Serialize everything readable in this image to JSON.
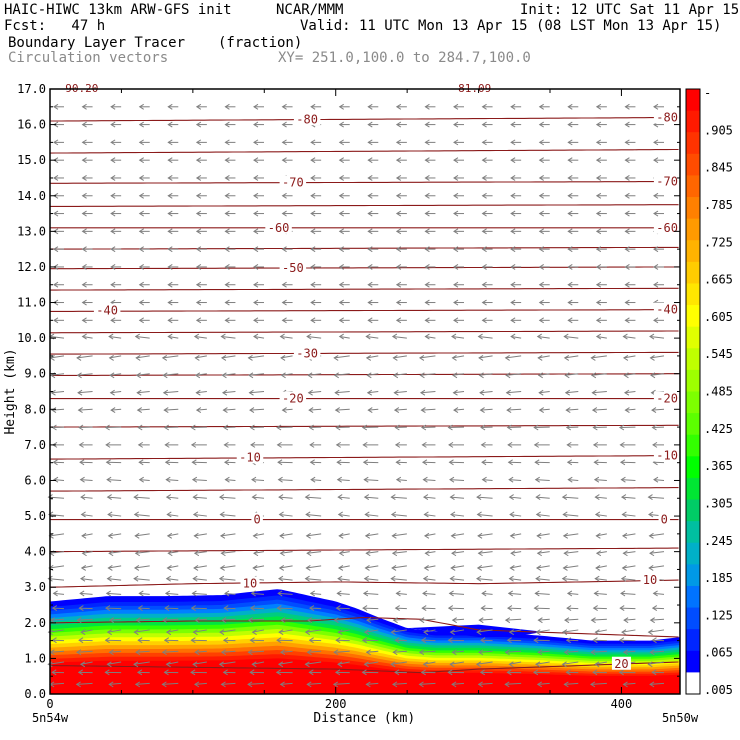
{
  "header": {
    "title_left": "HAIC-HIWC 13km ARW-GFS init",
    "title_org": "NCAR/MMM",
    "init": "Init: 12 UTC Sat 11 Apr 15",
    "fcst": "Fcst:   47 h",
    "valid": "Valid: 11 UTC Mon 13 Apr 15 (08 LST Mon 13 Apr 15)",
    "field": "Boundary Layer Tracer",
    "field_units": "(fraction)",
    "vectors": "Circulation vectors",
    "xy": "XY= 251.0,100.0 to 284.7,100.0"
  },
  "colors": {
    "contour": "#8b1a1a",
    "vector": "#7f7f7f"
  },
  "chart_data": {
    "type": "heatmap",
    "xlabel": "Distance (km)",
    "ylabel": "Height (km)",
    "xlim": [
      0,
      441
    ],
    "ylim": [
      0,
      17
    ],
    "x_ticks": [
      0,
      200,
      400
    ],
    "y_ticks": [
      0.0,
      1.0,
      2.0,
      3.0,
      4.0,
      5.0,
      6.0,
      7.0,
      8.0,
      9.0,
      10.0,
      11.0,
      12.0,
      13.0,
      14.0,
      15.0,
      16.0,
      17.0
    ],
    "x_end_labels": [
      "5n54w",
      "5n50w"
    ],
    "colorbar": {
      "labels": [
        "-",
        ".905",
        ".845",
        ".785",
        ".725",
        ".665",
        ".605",
        ".545",
        ".485",
        ".425",
        ".365",
        ".305",
        ".245",
        ".185",
        ".125",
        ".065",
        ".005"
      ],
      "colors": [
        "#ff0000",
        "#ff1a00",
        "#ff3300",
        "#ff4c00",
        "#ff6600",
        "#ff8000",
        "#ff9a00",
        "#ffb300",
        "#ffcc00",
        "#ffe600",
        "#ffff00",
        "#e0ff00",
        "#bfff00",
        "#9eff00",
        "#7dff00",
        "#5cff00",
        "#33ff00",
        "#00ff00",
        "#00e633",
        "#00cc66",
        "#00bfa0",
        "#00b0c8",
        "#0099e6",
        "#0073ff",
        "#004dff",
        "#0026ff",
        "#0000ff",
        "#ffffff"
      ]
    },
    "tracer_layer": {
      "x": [
        0,
        40,
        80,
        120,
        160,
        200,
        215,
        230,
        250,
        270,
        300,
        340,
        380,
        420,
        441
      ],
      "top": [
        2.6,
        2.75,
        2.75,
        2.78,
        2.95,
        2.6,
        2.4,
        2.15,
        1.85,
        1.75,
        1.75,
        1.65,
        1.5,
        1.5,
        1.6
      ]
    },
    "isotherms": [
      {
        "label": "20",
        "x": [
          0,
          100,
          200,
          260,
          300,
          441
        ],
        "y": [
          0.8,
          0.75,
          0.7,
          0.6,
          0.7,
          0.9
        ]
      },
      {
        "label": "",
        "x": [
          0,
          100,
          180,
          220,
          260,
          300,
          441
        ],
        "y": [
          2.0,
          2.05,
          2.05,
          2.15,
          2.1,
          1.8,
          1.6
        ]
      },
      {
        "label": "10",
        "x": [
          0,
          100,
          200,
          300,
          441
        ],
        "y": [
          3.0,
          3.1,
          3.15,
          3.1,
          3.2
        ]
      },
      {
        "label": "",
        "x": [
          0,
          441
        ],
        "y": [
          4.0,
          4.1
        ]
      },
      {
        "label": "0",
        "x": [
          0,
          441
        ],
        "y": [
          4.9,
          4.9
        ]
      },
      {
        "label": "",
        "x": [
          0,
          441
        ],
        "y": [
          5.7,
          5.8
        ]
      },
      {
        "label": "-10",
        "x": [
          0,
          441
        ],
        "y": [
          6.6,
          6.7
        ]
      },
      {
        "label": "",
        "x": [
          0,
          441
        ],
        "y": [
          7.5,
          7.55
        ]
      },
      {
        "label": "-20",
        "x": [
          0,
          441
        ],
        "y": [
          8.3,
          8.3
        ]
      },
      {
        "label": "",
        "x": [
          0,
          441
        ],
        "y": [
          8.95,
          9.0
        ]
      },
      {
        "label": "-30",
        "x": [
          0,
          441
        ],
        "y": [
          9.55,
          9.6
        ]
      },
      {
        "label": "",
        "x": [
          0,
          441
        ],
        "y": [
          10.15,
          10.2
        ]
      },
      {
        "label": "-40",
        "x": [
          0,
          441
        ],
        "y": [
          10.75,
          10.8
        ]
      },
      {
        "label": "",
        "x": [
          0,
          441
        ],
        "y": [
          11.35,
          11.4
        ]
      },
      {
        "label": "-50",
        "x": [
          0,
          441
        ],
        "y": [
          11.95,
          12.0
        ]
      },
      {
        "label": "",
        "x": [
          0,
          441
        ],
        "y": [
          12.5,
          12.55
        ]
      },
      {
        "label": "-60",
        "x": [
          0,
          441
        ],
        "y": [
          13.1,
          13.1
        ]
      },
      {
        "label": "",
        "x": [
          0,
          441
        ],
        "y": [
          13.7,
          13.75
        ]
      },
      {
        "label": "-70",
        "x": [
          0,
          441
        ],
        "y": [
          14.35,
          14.4
        ]
      },
      {
        "label": "",
        "x": [
          0,
          441
        ],
        "y": [
          15.2,
          15.3
        ]
      },
      {
        "label": "-80",
        "x": [
          0,
          441
        ],
        "y": [
          16.1,
          16.2
        ]
      }
    ],
    "contour_labels": [
      {
        "text": "20",
        "x": 400,
        "y": 0.85
      },
      {
        "text": "10",
        "x": 140,
        "y": 3.1
      },
      {
        "text": "10",
        "x": 420,
        "y": 3.2
      },
      {
        "text": "0",
        "x": 145,
        "y": 4.9
      },
      {
        "text": "0",
        "x": 430,
        "y": 4.9
      },
      {
        "text": "-10",
        "x": 140,
        "y": 6.65
      },
      {
        "text": "-10",
        "x": 432,
        "y": 6.7
      },
      {
        "text": "-20",
        "x": 170,
        "y": 8.3
      },
      {
        "text": "-20",
        "x": 432,
        "y": 8.3
      },
      {
        "text": "-30",
        "x": 180,
        "y": 9.57
      },
      {
        "text": "-40",
        "x": 40,
        "y": 10.77
      },
      {
        "text": "-40",
        "x": 432,
        "y": 10.8
      },
      {
        "text": "-50",
        "x": 170,
        "y": 11.97
      },
      {
        "text": "-60",
        "x": 160,
        "y": 13.1
      },
      {
        "text": "-60",
        "x": 432,
        "y": 13.1
      },
      {
        "text": "-70",
        "x": 170,
        "y": 14.37
      },
      {
        "text": "-70",
        "x": 432,
        "y": 14.4
      },
      {
        "text": "-80",
        "x": 180,
        "y": 16.15
      },
      {
        "text": "-80",
        "x": 432,
        "y": 16.2
      }
    ],
    "partial_top_labels": [
      {
        "text": "-90.20",
        "x": 20,
        "y": 17.0
      },
      {
        "text": "-81.09",
        "x": 295,
        "y": 17.0
      }
    ],
    "vectors": {
      "x": [
        0,
        20,
        40,
        60,
        80,
        100,
        120,
        140,
        160,
        180,
        200,
        220,
        240,
        260,
        280,
        300,
        320,
        340,
        360,
        380,
        400,
        420
      ],
      "y": [
        0.3,
        0.6,
        0.9,
        1.2,
        1.5,
        1.8,
        2.1,
        2.4,
        2.8,
        3.2,
        3.6,
        4.0,
        4.5,
        5.0,
        5.5,
        6.0,
        6.5,
        7.0,
        7.5,
        8.0,
        8.5,
        9.0,
        9.5,
        10.0,
        10.5,
        11.0,
        11.5,
        12.0,
        12.5,
        13.0,
        13.5,
        14.0,
        14.5,
        15.0,
        15.5,
        16.0,
        16.5
      ]
    }
  }
}
